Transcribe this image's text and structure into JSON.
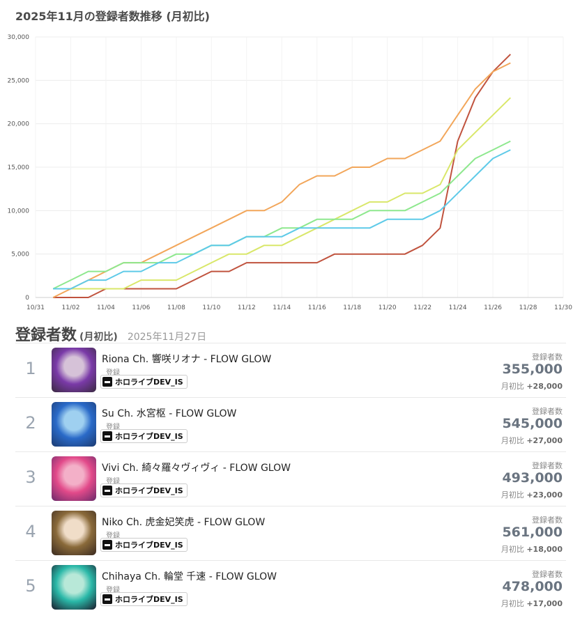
{
  "page_title": "2025年11月の登録者数推移 (月初比)",
  "chart_data": {
    "type": "line",
    "title": "2025年11月の登録者数推移 (月初比)",
    "x_ticks": [
      "10/31",
      "11/02",
      "11/04",
      "11/06",
      "11/08",
      "11/10",
      "11/12",
      "11/14",
      "11/16",
      "11/18",
      "11/20",
      "11/22",
      "11/24",
      "11/26",
      "11/28",
      "11/30"
    ],
    "y_ticks": [
      "0",
      "5,000",
      "10,000",
      "15,000",
      "20,000",
      "25,000",
      "30,000"
    ],
    "ylim": [
      0,
      30000
    ],
    "xlim": [
      "2025-10-31",
      "2025-11-30"
    ],
    "grid": true,
    "series": [
      {
        "color": "#c0533e",
        "points": [
          [
            "2025-11-01",
            0
          ],
          [
            "2025-11-02",
            0
          ],
          [
            "2025-11-03",
            0
          ],
          [
            "2025-11-04",
            1000
          ],
          [
            "2025-11-05",
            1000
          ],
          [
            "2025-11-06",
            1000
          ],
          [
            "2025-11-07",
            1000
          ],
          [
            "2025-11-08",
            1000
          ],
          [
            "2025-11-09",
            2000
          ],
          [
            "2025-11-10",
            3000
          ],
          [
            "2025-11-11",
            3000
          ],
          [
            "2025-11-12",
            4000
          ],
          [
            "2025-11-13",
            4000
          ],
          [
            "2025-11-14",
            4000
          ],
          [
            "2025-11-15",
            4000
          ],
          [
            "2025-11-16",
            4000
          ],
          [
            "2025-11-17",
            5000
          ],
          [
            "2025-11-18",
            5000
          ],
          [
            "2025-11-19",
            5000
          ],
          [
            "2025-11-20",
            5000
          ],
          [
            "2025-11-21",
            5000
          ],
          [
            "2025-11-22",
            6000
          ],
          [
            "2025-11-23",
            8000
          ],
          [
            "2025-11-24",
            18000
          ],
          [
            "2025-11-25",
            23000
          ],
          [
            "2025-11-26",
            26000
          ],
          [
            "2025-11-27",
            28000
          ]
        ]
      },
      {
        "color": "#f2a65a",
        "points": [
          [
            "2025-11-01",
            0
          ],
          [
            "2025-11-02",
            1000
          ],
          [
            "2025-11-03",
            2000
          ],
          [
            "2025-11-04",
            3000
          ],
          [
            "2025-11-05",
            4000
          ],
          [
            "2025-11-06",
            4000
          ],
          [
            "2025-11-07",
            5000
          ],
          [
            "2025-11-08",
            6000
          ],
          [
            "2025-11-09",
            7000
          ],
          [
            "2025-11-10",
            8000
          ],
          [
            "2025-11-11",
            9000
          ],
          [
            "2025-11-12",
            10000
          ],
          [
            "2025-11-13",
            10000
          ],
          [
            "2025-11-14",
            11000
          ],
          [
            "2025-11-15",
            13000
          ],
          [
            "2025-11-16",
            14000
          ],
          [
            "2025-11-17",
            14000
          ],
          [
            "2025-11-18",
            15000
          ],
          [
            "2025-11-19",
            15000
          ],
          [
            "2025-11-20",
            16000
          ],
          [
            "2025-11-21",
            16000
          ],
          [
            "2025-11-22",
            17000
          ],
          [
            "2025-11-23",
            18000
          ],
          [
            "2025-11-24",
            21000
          ],
          [
            "2025-11-25",
            24000
          ],
          [
            "2025-11-26",
            26000
          ],
          [
            "2025-11-27",
            27000
          ]
        ]
      },
      {
        "color": "#d9e76a",
        "points": [
          [
            "2025-11-01",
            1000
          ],
          [
            "2025-11-02",
            1000
          ],
          [
            "2025-11-03",
            1000
          ],
          [
            "2025-11-04",
            1000
          ],
          [
            "2025-11-05",
            1000
          ],
          [
            "2025-11-06",
            2000
          ],
          [
            "2025-11-07",
            2000
          ],
          [
            "2025-11-08",
            2000
          ],
          [
            "2025-11-09",
            3000
          ],
          [
            "2025-11-10",
            4000
          ],
          [
            "2025-11-11",
            5000
          ],
          [
            "2025-11-12",
            5000
          ],
          [
            "2025-11-13",
            6000
          ],
          [
            "2025-11-14",
            6000
          ],
          [
            "2025-11-15",
            7000
          ],
          [
            "2025-11-16",
            8000
          ],
          [
            "2025-11-17",
            9000
          ],
          [
            "2025-11-18",
            10000
          ],
          [
            "2025-11-19",
            11000
          ],
          [
            "2025-11-20",
            11000
          ],
          [
            "2025-11-21",
            12000
          ],
          [
            "2025-11-22",
            12000
          ],
          [
            "2025-11-23",
            13000
          ],
          [
            "2025-11-24",
            17000
          ],
          [
            "2025-11-25",
            19000
          ],
          [
            "2025-11-26",
            21000
          ],
          [
            "2025-11-27",
            23000
          ]
        ]
      },
      {
        "color": "#8ee88e",
        "points": [
          [
            "2025-11-01",
            1000
          ],
          [
            "2025-11-02",
            2000
          ],
          [
            "2025-11-03",
            3000
          ],
          [
            "2025-11-04",
            3000
          ],
          [
            "2025-11-05",
            4000
          ],
          [
            "2025-11-06",
            4000
          ],
          [
            "2025-11-07",
            4000
          ],
          [
            "2025-11-08",
            5000
          ],
          [
            "2025-11-09",
            5000
          ],
          [
            "2025-11-10",
            6000
          ],
          [
            "2025-11-11",
            6000
          ],
          [
            "2025-11-12",
            7000
          ],
          [
            "2025-11-13",
            7000
          ],
          [
            "2025-11-14",
            8000
          ],
          [
            "2025-11-15",
            8000
          ],
          [
            "2025-11-16",
            9000
          ],
          [
            "2025-11-17",
            9000
          ],
          [
            "2025-11-18",
            9000
          ],
          [
            "2025-11-19",
            10000
          ],
          [
            "2025-11-20",
            10000
          ],
          [
            "2025-11-21",
            10000
          ],
          [
            "2025-11-22",
            11000
          ],
          [
            "2025-11-23",
            12000
          ],
          [
            "2025-11-24",
            14000
          ],
          [
            "2025-11-25",
            16000
          ],
          [
            "2025-11-26",
            17000
          ],
          [
            "2025-11-27",
            18000
          ]
        ]
      },
      {
        "color": "#5ecae8",
        "points": [
          [
            "2025-11-01",
            1000
          ],
          [
            "2025-11-02",
            1000
          ],
          [
            "2025-11-03",
            2000
          ],
          [
            "2025-11-04",
            2000
          ],
          [
            "2025-11-05",
            3000
          ],
          [
            "2025-11-06",
            3000
          ],
          [
            "2025-11-07",
            4000
          ],
          [
            "2025-11-08",
            4000
          ],
          [
            "2025-11-09",
            5000
          ],
          [
            "2025-11-10",
            6000
          ],
          [
            "2025-11-11",
            6000
          ],
          [
            "2025-11-12",
            7000
          ],
          [
            "2025-11-13",
            7000
          ],
          [
            "2025-11-14",
            7000
          ],
          [
            "2025-11-15",
            8000
          ],
          [
            "2025-11-16",
            8000
          ],
          [
            "2025-11-17",
            8000
          ],
          [
            "2025-11-18",
            8000
          ],
          [
            "2025-11-19",
            8000
          ],
          [
            "2025-11-20",
            9000
          ],
          [
            "2025-11-21",
            9000
          ],
          [
            "2025-11-22",
            9000
          ],
          [
            "2025-11-23",
            10000
          ],
          [
            "2025-11-24",
            12000
          ],
          [
            "2025-11-25",
            14000
          ],
          [
            "2025-11-26",
            16000
          ],
          [
            "2025-11-27",
            17000
          ]
        ]
      }
    ]
  },
  "ranking": {
    "title": "登録者数",
    "subtitle": "(月初比)",
    "date": "2025年11月27日",
    "stat_label": "登録者数",
    "delta_label": "月初比",
    "reg_label": "登録",
    "org_name": "ホロライブDEV_IS",
    "items": [
      {
        "rank": "1",
        "name": "Riona Ch. 響咲リオナ - FLOW GLOW",
        "subs": "355,000",
        "delta": "+28,000",
        "avatar_colors": [
          "#7a3aa8",
          "#d6c2d8",
          "#3a2a40"
        ]
      },
      {
        "rank": "2",
        "name": "Su Ch. 水宮枢 - FLOW GLOW",
        "subs": "545,000",
        "delta": "+27,000",
        "avatar_colors": [
          "#2a6ac8",
          "#9fd0f0",
          "#1c3a70"
        ]
      },
      {
        "rank": "3",
        "name": "Vivi Ch. 綺々羅々ヴィヴィ - FLOW GLOW",
        "subs": "493,000",
        "delta": "+23,000",
        "avatar_colors": [
          "#e24a8a",
          "#f3b0c8",
          "#6a2a6a"
        ]
      },
      {
        "rank": "4",
        "name": "Niko Ch. 虎金妃笑虎 - FLOW GLOW",
        "subs": "561,000",
        "delta": "+18,000",
        "avatar_colors": [
          "#8a6a3a",
          "#f0ddc8",
          "#3a2a20"
        ]
      },
      {
        "rank": "5",
        "name": "Chihaya Ch. 輪堂 千速 - FLOW GLOW",
        "subs": "478,000",
        "delta": "+17,000",
        "avatar_colors": [
          "#2ab8a8",
          "#b8e8d8",
          "#1a1a2a"
        ]
      }
    ]
  }
}
